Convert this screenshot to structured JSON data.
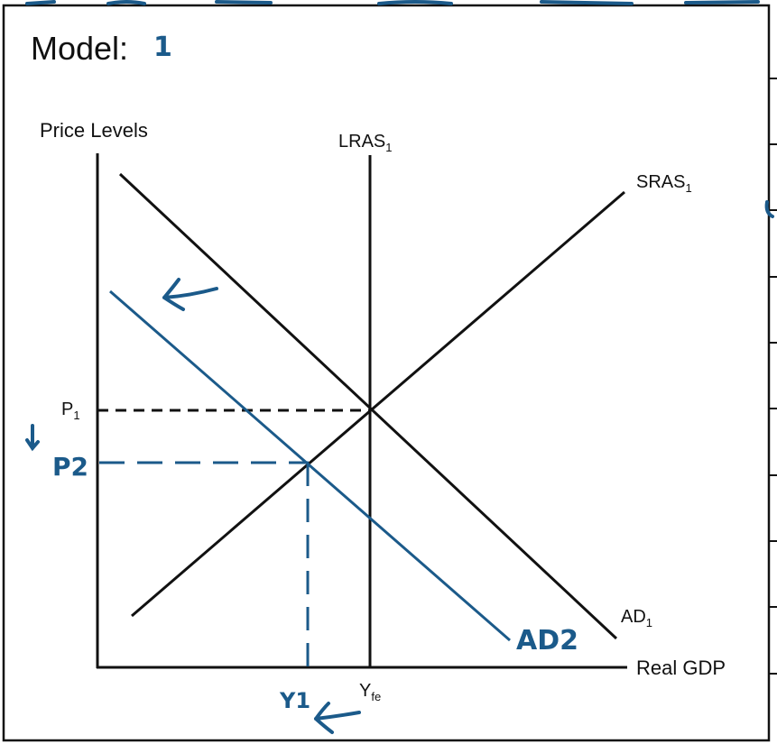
{
  "header": {
    "model_label": "Model:",
    "model_number": "1"
  },
  "axes": {
    "y_label": "Price Levels",
    "x_label": "Real GDP"
  },
  "curves": {
    "lras": {
      "name": "LRAS",
      "sub": "1"
    },
    "sras": {
      "name": "SRAS",
      "sub": "1"
    },
    "ad1": {
      "name": "AD",
      "sub": "1"
    },
    "ad2": {
      "name": "AD2"
    }
  },
  "levels": {
    "p1": {
      "name": "P",
      "sub": "1"
    },
    "p2": {
      "name": "P2"
    },
    "yfe": {
      "name": "Y",
      "sub": "fe"
    },
    "y1": {
      "name": "Y1"
    }
  },
  "colors": {
    "ink": "#111111",
    "handwriting": "#1b5a8a"
  },
  "icons": [
    "shift-left-arrow-icon",
    "price-down-arrow-icon",
    "output-left-arrow-icon"
  ]
}
